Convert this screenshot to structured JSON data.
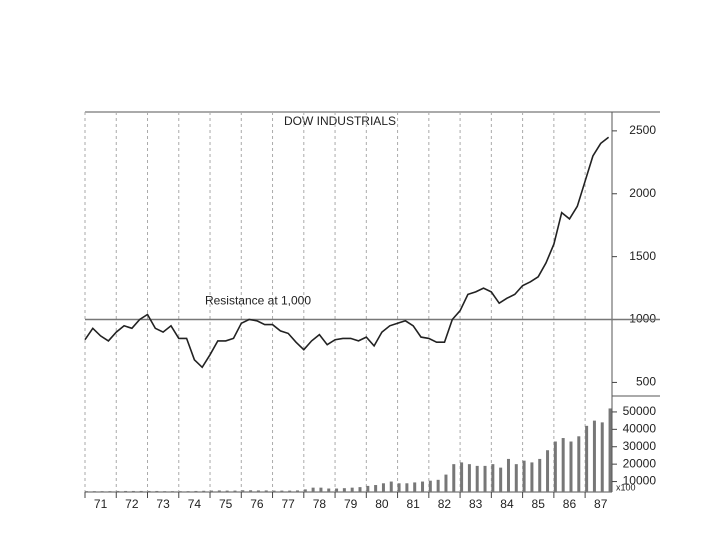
{
  "chart_data": [
    {
      "type": "line",
      "title": "DOW INDUSTRIALS",
      "color": "#222",
      "x": [
        1971.0,
        1971.25,
        1971.5,
        1971.75,
        1972.0,
        1972.25,
        1972.5,
        1972.75,
        1973.0,
        1973.25,
        1973.5,
        1973.75,
        1974.0,
        1974.25,
        1974.5,
        1974.75,
        1975.0,
        1975.25,
        1975.5,
        1975.75,
        1976.0,
        1976.25,
        1976.5,
        1976.75,
        1977.0,
        1977.25,
        1977.5,
        1977.75,
        1978.0,
        1978.25,
        1978.5,
        1978.75,
        1979.0,
        1979.25,
        1979.5,
        1979.75,
        1980.0,
        1980.25,
        1980.5,
        1980.75,
        1981.0,
        1981.25,
        1981.5,
        1981.75,
        1982.0,
        1982.25,
        1982.5,
        1982.75,
        1983.0,
        1983.25,
        1983.5,
        1983.75,
        1984.0,
        1984.25,
        1984.5,
        1984.75,
        1985.0,
        1985.25,
        1985.5,
        1985.75,
        1986.0,
        1986.25,
        1986.5,
        1986.75,
        1987.0,
        1987.25,
        1987.5,
        1987.75
      ],
      "values": [
        840,
        930,
        870,
        830,
        900,
        950,
        930,
        1000,
        1040,
        930,
        900,
        950,
        850,
        850,
        680,
        620,
        720,
        830,
        830,
        850,
        970,
        1000,
        990,
        960,
        960,
        910,
        890,
        820,
        760,
        830,
        880,
        800,
        840,
        850,
        850,
        830,
        860,
        790,
        900,
        950,
        970,
        990,
        950,
        860,
        850,
        820,
        820,
        1000,
        1070,
        1200,
        1220,
        1250,
        1220,
        1130,
        1170,
        1200,
        1270,
        1300,
        1340,
        1450,
        1600,
        1850,
        1800,
        1900,
        2100,
        2300,
        2400,
        2450
      ],
      "xlim": [
        1971,
        1987.86
      ],
      "ylim": [
        400,
        2650
      ],
      "yticks": [
        500,
        1000,
        1500,
        2000,
        2500
      ],
      "reference": {
        "value": 1000,
        "label": "Resistance at 1,000"
      }
    },
    {
      "type": "bar",
      "color": "#777",
      "x": [
        1971.0,
        1971.25,
        1971.5,
        1971.75,
        1972.0,
        1972.25,
        1972.5,
        1972.75,
        1973.0,
        1973.25,
        1973.5,
        1973.75,
        1974.0,
        1974.25,
        1974.5,
        1974.75,
        1975.0,
        1975.25,
        1975.5,
        1975.75,
        1976.0,
        1976.25,
        1976.5,
        1976.75,
        1977.0,
        1977.25,
        1977.5,
        1977.75,
        1978.0,
        1978.25,
        1978.5,
        1978.75,
        1979.0,
        1979.25,
        1979.5,
        1979.75,
        1980.0,
        1980.25,
        1980.5,
        1980.75,
        1981.0,
        1981.25,
        1981.5,
        1981.75,
        1982.0,
        1982.25,
        1982.5,
        1982.75,
        1983.0,
        1983.25,
        1983.5,
        1983.75,
        1984.0,
        1984.25,
        1984.5,
        1984.75,
        1985.0,
        1985.25,
        1985.5,
        1985.75,
        1986.0,
        1986.25,
        1986.5,
        1986.75,
        1987.0,
        1987.25,
        1987.5,
        1987.75
      ],
      "values": [
        4500,
        4500,
        4500,
        4500,
        4600,
        4600,
        4600,
        4600,
        4600,
        4600,
        4500,
        4500,
        4500,
        4500,
        4600,
        4700,
        4800,
        4900,
        4800,
        4800,
        5000,
        5000,
        4900,
        4900,
        4800,
        4800,
        4800,
        4900,
        5500,
        6500,
        6500,
        6000,
        6000,
        6200,
        6500,
        6800,
        7500,
        8000,
        9000,
        10000,
        9000,
        9000,
        9500,
        10000,
        10500,
        11000,
        14000,
        20000,
        21000,
        20000,
        19000,
        19000,
        20000,
        18000,
        23000,
        20000,
        22000,
        21000,
        23000,
        28000,
        33000,
        35000,
        33000,
        36000,
        42000,
        45000,
        44000,
        52000
      ],
      "xlim": [
        1971,
        1987.86
      ],
      "ylim": [
        4000,
        58000
      ],
      "yticks": [
        10000,
        20000,
        30000,
        40000,
        50000
      ],
      "unit_label": "x100",
      "xticks": [
        {
          "value": 1971,
          "label": "71"
        },
        {
          "value": 1972,
          "label": "72"
        },
        {
          "value": 1973,
          "label": "73"
        },
        {
          "value": 1974,
          "label": "74"
        },
        {
          "value": 1975,
          "label": "75"
        },
        {
          "value": 1976,
          "label": "76"
        },
        {
          "value": 1977,
          "label": "77"
        },
        {
          "value": 1978,
          "label": "78"
        },
        {
          "value": 1979,
          "label": "79"
        },
        {
          "value": 1980,
          "label": "80"
        },
        {
          "value": 1981,
          "label": "81"
        },
        {
          "value": 1982,
          "label": "82"
        },
        {
          "value": 1983,
          "label": "83"
        },
        {
          "value": 1984,
          "label": "84"
        },
        {
          "value": 1985,
          "label": "85"
        },
        {
          "value": 1986,
          "label": "86"
        },
        {
          "value": 1987,
          "label": "87"
        }
      ]
    }
  ]
}
